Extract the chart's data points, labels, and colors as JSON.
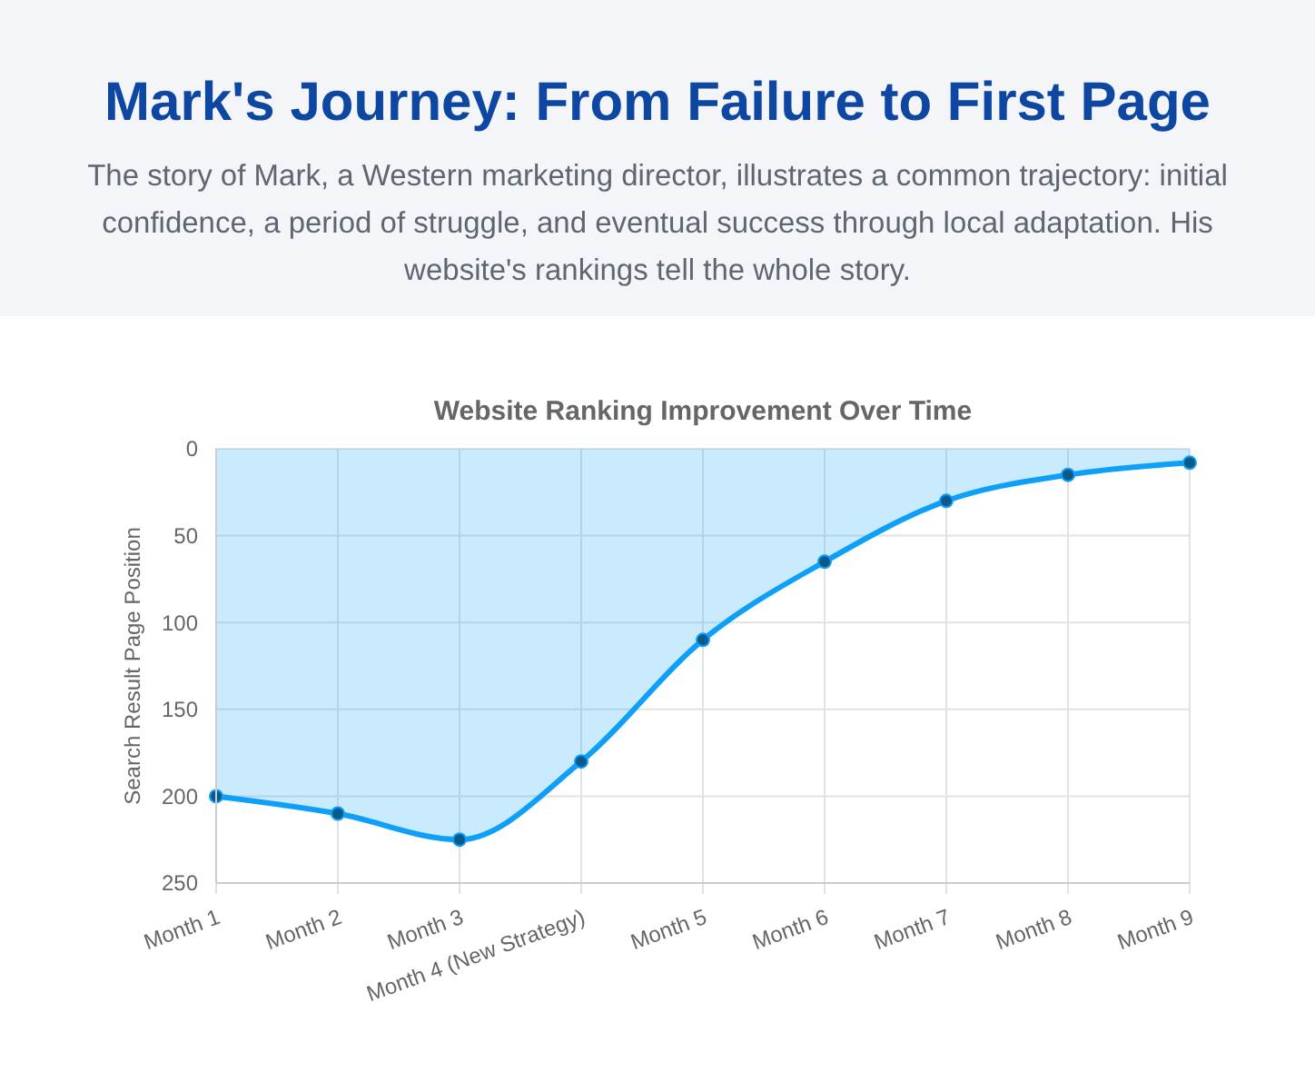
{
  "chart_data": {
    "type": "area",
    "title": "Website Ranking Improvement Over Time",
    "annotations": [
      "Mark's Journey: From Failure to First Page",
      "The story of Mark, a Western marketing director, illustrates a common trajectory: initial confidence, a period of struggle, and eventual success through local adaptation. His website's rankings tell the whole story."
    ],
    "ylabel": "Search Result Page Position",
    "categories": [
      "Month 1",
      "Month 2",
      "Month 3",
      "Month 4 (New Strategy)",
      "Month 5",
      "Month 6",
      "Month 7",
      "Month 8",
      "Month 9"
    ],
    "series": [
      {
        "color": "#0ea0f8",
        "values": [
          200,
          210,
          225,
          180,
          110,
          65,
          30,
          15,
          8
        ]
      }
    ],
    "ylim": [
      250,
      0
    ],
    "yticks": [
      0,
      50,
      100,
      150,
      200,
      250
    ],
    "grid": true,
    "marker": "circle",
    "line_style": "solid"
  }
}
